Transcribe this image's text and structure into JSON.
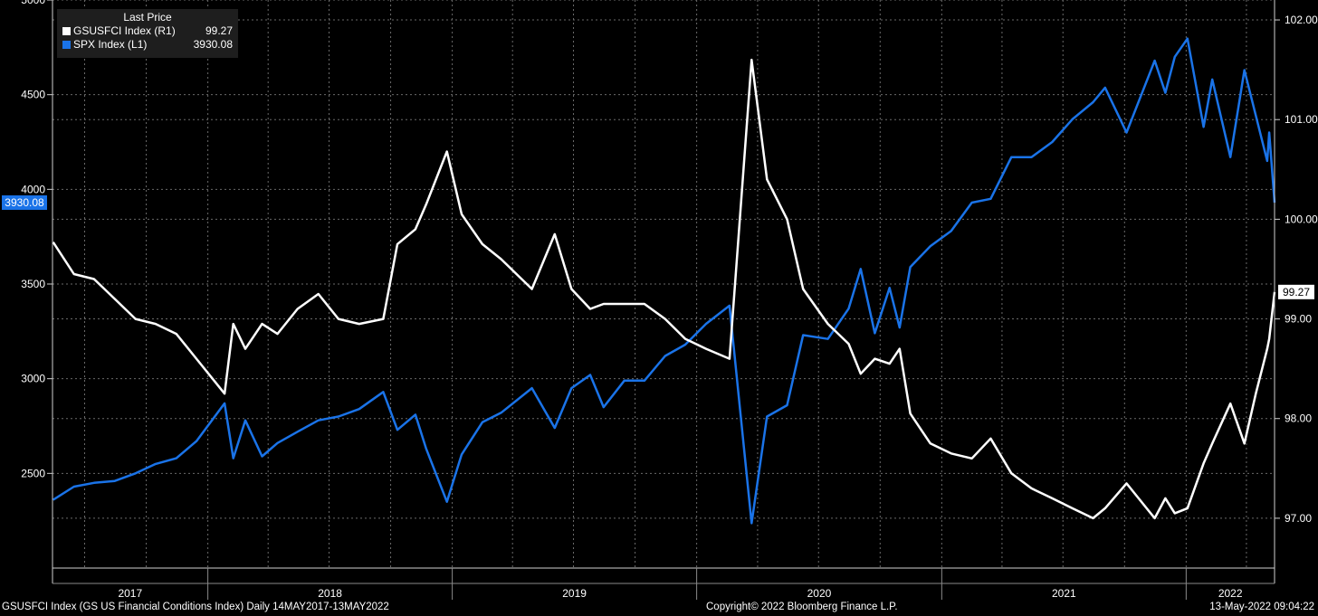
{
  "legend": {
    "header": "Last Price",
    "items": [
      {
        "name": "GSUSFCI Index  (R1)",
        "value": "99.27",
        "color": "#ffffff"
      },
      {
        "name": "SPX Index  (L1)",
        "value": "3930.08",
        "color": "#1a73e8"
      }
    ]
  },
  "footer": {
    "left": "GSUSFCI Index (GS US Financial Conditions Index)  Daily 14MAY2017-13MAY2022",
    "center": "Copyright© 2022 Bloomberg Finance L.P.",
    "right": "13-May-2022 09:04:22"
  },
  "chart_data": {
    "type": "line",
    "x_axis": {
      "range": [
        "2017-05-14",
        "2022-05-13"
      ],
      "year_labels": [
        "2017",
        "2018",
        "2019",
        "2020",
        "2021",
        "2022"
      ]
    },
    "y_left": {
      "range": [
        2000,
        5000
      ],
      "ticks": [
        "5000",
        "4500",
        "4000",
        "3500",
        "3000",
        "2500"
      ],
      "last_value_label": "3930.08"
    },
    "y_right": {
      "range": [
        96.5,
        102.2
      ],
      "ticks": [
        "102.00",
        "101.00",
        "100.00",
        "99.00",
        "98.00",
        "97.00"
      ],
      "last_value_label": "99.27"
    },
    "grid": true,
    "series": [
      {
        "name": "SPX Index  (L1)",
        "axis": "left",
        "color": "#1a73e8",
        "points": [
          [
            "2017-05-15",
            2360
          ],
          [
            "2017-06-15",
            2430
          ],
          [
            "2017-07-15",
            2450
          ],
          [
            "2017-08-15",
            2460
          ],
          [
            "2017-09-15",
            2500
          ],
          [
            "2017-10-15",
            2550
          ],
          [
            "2017-11-15",
            2580
          ],
          [
            "2017-12-15",
            2670
          ],
          [
            "2018-01-26",
            2870
          ],
          [
            "2018-02-08",
            2580
          ],
          [
            "2018-02-26",
            2780
          ],
          [
            "2018-03-23",
            2590
          ],
          [
            "2018-04-15",
            2660
          ],
          [
            "2018-05-15",
            2720
          ],
          [
            "2018-06-15",
            2780
          ],
          [
            "2018-07-15",
            2800
          ],
          [
            "2018-08-15",
            2840
          ],
          [
            "2018-09-20",
            2930
          ],
          [
            "2018-10-11",
            2730
          ],
          [
            "2018-11-07",
            2810
          ],
          [
            "2018-11-23",
            2630
          ],
          [
            "2018-12-24",
            2350
          ],
          [
            "2019-01-15",
            2600
          ],
          [
            "2019-02-15",
            2770
          ],
          [
            "2019-03-15",
            2820
          ],
          [
            "2019-04-30",
            2950
          ],
          [
            "2019-06-03",
            2740
          ],
          [
            "2019-06-28",
            2950
          ],
          [
            "2019-07-26",
            3020
          ],
          [
            "2019-08-15",
            2850
          ],
          [
            "2019-09-15",
            2990
          ],
          [
            "2019-10-15",
            2990
          ],
          [
            "2019-11-15",
            3120
          ],
          [
            "2019-12-15",
            3180
          ],
          [
            "2020-01-15",
            3290
          ],
          [
            "2020-02-19",
            3386
          ],
          [
            "2020-03-23",
            2237
          ],
          [
            "2020-04-15",
            2800
          ],
          [
            "2020-05-15",
            2860
          ],
          [
            "2020-06-08",
            3230
          ],
          [
            "2020-07-15",
            3210
          ],
          [
            "2020-08-15",
            3370
          ],
          [
            "2020-09-02",
            3580
          ],
          [
            "2020-09-23",
            3240
          ],
          [
            "2020-10-15",
            3480
          ],
          [
            "2020-10-30",
            3270
          ],
          [
            "2020-11-15",
            3590
          ],
          [
            "2020-12-15",
            3700
          ],
          [
            "2021-01-15",
            3780
          ],
          [
            "2021-02-15",
            3930
          ],
          [
            "2021-03-15",
            3950
          ],
          [
            "2021-04-15",
            4170
          ],
          [
            "2021-05-15",
            4170
          ],
          [
            "2021-06-15",
            4250
          ],
          [
            "2021-07-15",
            4370
          ],
          [
            "2021-08-15",
            4460
          ],
          [
            "2021-09-02",
            4537
          ],
          [
            "2021-10-04",
            4300
          ],
          [
            "2021-11-15",
            4680
          ],
          [
            "2021-12-01",
            4510
          ],
          [
            "2021-12-15",
            4700
          ],
          [
            "2022-01-03",
            4796
          ],
          [
            "2022-01-27",
            4330
          ],
          [
            "2022-02-09",
            4580
          ],
          [
            "2022-03-08",
            4170
          ],
          [
            "2022-03-29",
            4630
          ],
          [
            "2022-04-15",
            4390
          ],
          [
            "2022-05-02",
            4150
          ],
          [
            "2022-05-05",
            4300
          ],
          [
            "2022-05-13",
            3930.08
          ]
        ]
      },
      {
        "name": "GSUSFCI Index  (R1)",
        "axis": "right",
        "color": "#ffffff",
        "points": [
          [
            "2017-05-15",
            99.77
          ],
          [
            "2017-06-15",
            99.45
          ],
          [
            "2017-07-15",
            99.4
          ],
          [
            "2017-08-15",
            99.2
          ],
          [
            "2017-09-15",
            99.0
          ],
          [
            "2017-10-15",
            98.95
          ],
          [
            "2017-11-15",
            98.85
          ],
          [
            "2017-12-15",
            98.6
          ],
          [
            "2018-01-26",
            98.25
          ],
          [
            "2018-02-08",
            98.95
          ],
          [
            "2018-02-26",
            98.7
          ],
          [
            "2018-03-23",
            98.95
          ],
          [
            "2018-04-15",
            98.85
          ],
          [
            "2018-05-15",
            99.1
          ],
          [
            "2018-06-15",
            99.25
          ],
          [
            "2018-07-15",
            99.0
          ],
          [
            "2018-08-15",
            98.95
          ],
          [
            "2018-09-20",
            99.0
          ],
          [
            "2018-10-11",
            99.75
          ],
          [
            "2018-11-07",
            99.9
          ],
          [
            "2018-11-23",
            100.15
          ],
          [
            "2018-12-24",
            100.68
          ],
          [
            "2019-01-15",
            100.05
          ],
          [
            "2019-02-15",
            99.75
          ],
          [
            "2019-03-15",
            99.6
          ],
          [
            "2019-04-30",
            99.3
          ],
          [
            "2019-06-03",
            99.85
          ],
          [
            "2019-06-28",
            99.3
          ],
          [
            "2019-07-26",
            99.1
          ],
          [
            "2019-08-15",
            99.15
          ],
          [
            "2019-09-15",
            99.15
          ],
          [
            "2019-10-15",
            99.15
          ],
          [
            "2019-11-15",
            99.0
          ],
          [
            "2019-12-15",
            98.8
          ],
          [
            "2020-01-15",
            98.7
          ],
          [
            "2020-02-19",
            98.6
          ],
          [
            "2020-03-23",
            101.6
          ],
          [
            "2020-04-15",
            100.4
          ],
          [
            "2020-05-15",
            100.0
          ],
          [
            "2020-06-08",
            99.3
          ],
          [
            "2020-07-15",
            98.95
          ],
          [
            "2020-08-15",
            98.75
          ],
          [
            "2020-09-02",
            98.45
          ],
          [
            "2020-09-23",
            98.6
          ],
          [
            "2020-10-15",
            98.55
          ],
          [
            "2020-10-30",
            98.7
          ],
          [
            "2020-11-15",
            98.05
          ],
          [
            "2020-12-15",
            97.75
          ],
          [
            "2021-01-15",
            97.65
          ],
          [
            "2021-02-15",
            97.6
          ],
          [
            "2021-03-15",
            97.8
          ],
          [
            "2021-04-15",
            97.45
          ],
          [
            "2021-05-15",
            97.3
          ],
          [
            "2021-06-15",
            97.2
          ],
          [
            "2021-07-15",
            97.1
          ],
          [
            "2021-08-15",
            97.0
          ],
          [
            "2021-09-02",
            97.1
          ],
          [
            "2021-10-04",
            97.35
          ],
          [
            "2021-11-15",
            97.0
          ],
          [
            "2021-12-01",
            97.2
          ],
          [
            "2021-12-15",
            97.05
          ],
          [
            "2022-01-03",
            97.1
          ],
          [
            "2022-01-27",
            97.55
          ],
          [
            "2022-02-09",
            97.75
          ],
          [
            "2022-03-08",
            98.15
          ],
          [
            "2022-03-29",
            97.75
          ],
          [
            "2022-04-15",
            98.25
          ],
          [
            "2022-05-02",
            98.7
          ],
          [
            "2022-05-05",
            98.8
          ],
          [
            "2022-05-13",
            99.27
          ]
        ]
      }
    ]
  }
}
